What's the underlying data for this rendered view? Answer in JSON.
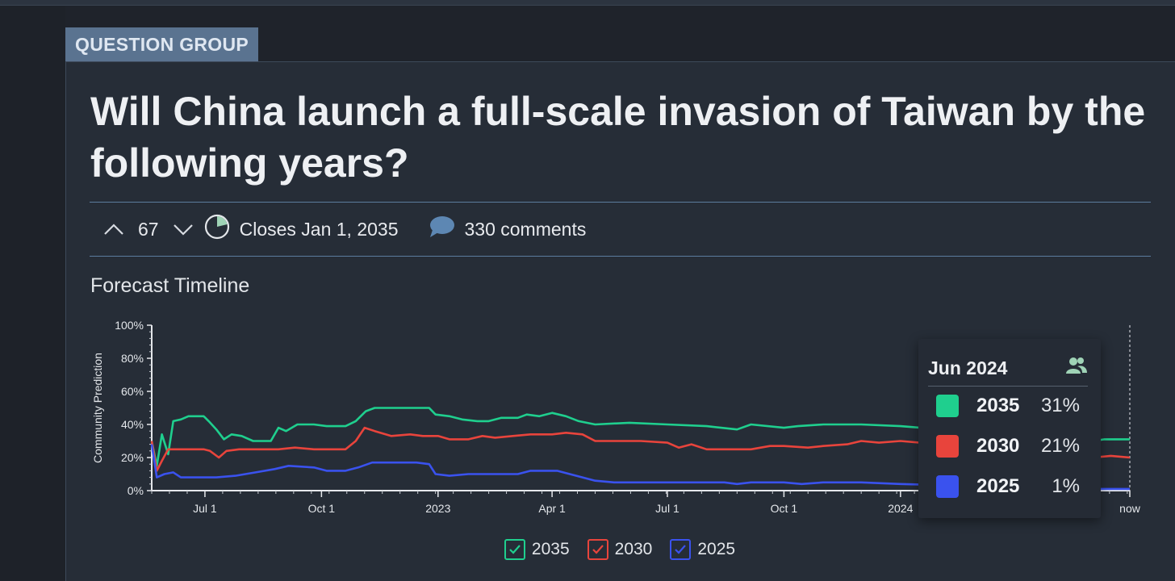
{
  "tag": "QUESTION GROUP",
  "title": "Will China launch a full-scale invasion of Taiwan by the following years?",
  "meta": {
    "votes": "67",
    "closes": "Closes Jan 1, 2035",
    "comments": "330 comments"
  },
  "section_title": "Forecast Timeline",
  "colors": {
    "2035": "#1fcf8e",
    "2030": "#e8443c",
    "2025": "#3a52ee",
    "accent": "#5a7390"
  },
  "chart_data": {
    "type": "line",
    "ylabel": "Community Prediction",
    "y_ticks": [
      "0%",
      "20%",
      "40%",
      "60%",
      "80%",
      "100%"
    ],
    "ylim": [
      0,
      100
    ],
    "x_ticks": [
      {
        "label": "Jul 1",
        "x": "2022-07-01"
      },
      {
        "label": "Oct 1",
        "x": "2022-10-01"
      },
      {
        "label": "2023",
        "x": "2023-01-01"
      },
      {
        "label": "Apr 1",
        "x": "2023-04-01"
      },
      {
        "label": "Jul 1",
        "x": "2023-07-01"
      },
      {
        "label": "Oct 1",
        "x": "2023-10-01"
      },
      {
        "label": "2024",
        "x": "2024-01-01"
      },
      {
        "label": "now",
        "x": "2024-06-30"
      }
    ],
    "x_range": [
      "2022-05-20",
      "2024-06-30"
    ],
    "grid": false,
    "series": [
      {
        "name": "2035",
        "points": [
          [
            "2022-05-20",
            30
          ],
          [
            "2022-05-24",
            15
          ],
          [
            "2022-05-28",
            34
          ],
          [
            "2022-06-02",
            22
          ],
          [
            "2022-06-06",
            42
          ],
          [
            "2022-06-12",
            43
          ],
          [
            "2022-06-18",
            45
          ],
          [
            "2022-06-30",
            45
          ],
          [
            "2022-07-04",
            42
          ],
          [
            "2022-07-10",
            37
          ],
          [
            "2022-07-16",
            31
          ],
          [
            "2022-07-22",
            34
          ],
          [
            "2022-07-30",
            33
          ],
          [
            "2022-08-08",
            30
          ],
          [
            "2022-08-22",
            30
          ],
          [
            "2022-08-28",
            38
          ],
          [
            "2022-09-03",
            36
          ],
          [
            "2022-09-12",
            40
          ],
          [
            "2022-09-25",
            40
          ],
          [
            "2022-10-05",
            39
          ],
          [
            "2022-10-20",
            39
          ],
          [
            "2022-10-28",
            42
          ],
          [
            "2022-11-05",
            48
          ],
          [
            "2022-11-12",
            50
          ],
          [
            "2022-12-25",
            50
          ],
          [
            "2022-12-30",
            46
          ],
          [
            "2023-01-10",
            45
          ],
          [
            "2023-01-20",
            43
          ],
          [
            "2023-02-01",
            42
          ],
          [
            "2023-02-10",
            42
          ],
          [
            "2023-02-20",
            44
          ],
          [
            "2023-03-05",
            44
          ],
          [
            "2023-03-12",
            46
          ],
          [
            "2023-03-22",
            45
          ],
          [
            "2023-04-01",
            47
          ],
          [
            "2023-04-12",
            45
          ],
          [
            "2023-04-22",
            42
          ],
          [
            "2023-05-05",
            40
          ],
          [
            "2023-06-01",
            41
          ],
          [
            "2023-07-01",
            40
          ],
          [
            "2023-08-01",
            39
          ],
          [
            "2023-08-25",
            37
          ],
          [
            "2023-09-05",
            40
          ],
          [
            "2023-10-01",
            38
          ],
          [
            "2023-10-12",
            39
          ],
          [
            "2023-11-01",
            40
          ],
          [
            "2023-12-01",
            40
          ],
          [
            "2024-01-01",
            39
          ],
          [
            "2024-06-01",
            30
          ],
          [
            "2024-06-10",
            31
          ],
          [
            "2024-06-30",
            31
          ]
        ]
      },
      {
        "name": "2030",
        "points": [
          [
            "2022-05-20",
            30
          ],
          [
            "2022-05-24",
            12
          ],
          [
            "2022-05-28",
            18
          ],
          [
            "2022-06-02",
            25
          ],
          [
            "2022-06-30",
            25
          ],
          [
            "2022-07-05",
            24
          ],
          [
            "2022-07-12",
            20
          ],
          [
            "2022-07-18",
            24
          ],
          [
            "2022-07-28",
            25
          ],
          [
            "2022-08-10",
            25
          ],
          [
            "2022-08-28",
            25
          ],
          [
            "2022-09-10",
            26
          ],
          [
            "2022-09-25",
            25
          ],
          [
            "2022-10-20",
            25
          ],
          [
            "2022-10-28",
            30
          ],
          [
            "2022-11-04",
            38
          ],
          [
            "2022-11-12",
            36
          ],
          [
            "2022-11-25",
            33
          ],
          [
            "2022-12-10",
            34
          ],
          [
            "2022-12-20",
            33
          ],
          [
            "2023-01-01",
            33
          ],
          [
            "2023-01-10",
            31
          ],
          [
            "2023-01-25",
            31
          ],
          [
            "2023-02-05",
            33
          ],
          [
            "2023-02-15",
            32
          ],
          [
            "2023-03-01",
            33
          ],
          [
            "2023-03-15",
            34
          ],
          [
            "2023-04-01",
            34
          ],
          [
            "2023-04-12",
            35
          ],
          [
            "2023-04-25",
            34
          ],
          [
            "2023-05-05",
            30
          ],
          [
            "2023-05-25",
            30
          ],
          [
            "2023-06-10",
            30
          ],
          [
            "2023-07-01",
            29
          ],
          [
            "2023-07-10",
            26
          ],
          [
            "2023-07-20",
            28
          ],
          [
            "2023-08-01",
            25
          ],
          [
            "2023-08-20",
            25
          ],
          [
            "2023-09-05",
            25
          ],
          [
            "2023-09-20",
            27
          ],
          [
            "2023-10-01",
            27
          ],
          [
            "2023-10-20",
            26
          ],
          [
            "2023-11-01",
            27
          ],
          [
            "2023-11-20",
            28
          ],
          [
            "2023-12-01",
            30
          ],
          [
            "2023-12-15",
            29
          ],
          [
            "2024-01-01",
            30
          ],
          [
            "2024-06-01",
            20
          ],
          [
            "2024-06-15",
            21
          ],
          [
            "2024-06-30",
            20
          ]
        ]
      },
      {
        "name": "2025",
        "points": [
          [
            "2022-05-20",
            28
          ],
          [
            "2022-05-24",
            8
          ],
          [
            "2022-05-30",
            10
          ],
          [
            "2022-06-06",
            11
          ],
          [
            "2022-06-12",
            8
          ],
          [
            "2022-06-30",
            8
          ],
          [
            "2022-07-10",
            8
          ],
          [
            "2022-07-25",
            9
          ],
          [
            "2022-08-10",
            11
          ],
          [
            "2022-08-25",
            13
          ],
          [
            "2022-09-05",
            15
          ],
          [
            "2022-09-25",
            14
          ],
          [
            "2022-10-05",
            12
          ],
          [
            "2022-10-20",
            12
          ],
          [
            "2022-10-30",
            14
          ],
          [
            "2022-11-10",
            17
          ],
          [
            "2022-12-15",
            17
          ],
          [
            "2022-12-25",
            16
          ],
          [
            "2022-12-30",
            10
          ],
          [
            "2023-01-10",
            9
          ],
          [
            "2023-01-25",
            10
          ],
          [
            "2023-02-15",
            10
          ],
          [
            "2023-03-05",
            10
          ],
          [
            "2023-03-15",
            12
          ],
          [
            "2023-04-05",
            12
          ],
          [
            "2023-04-15",
            10
          ],
          [
            "2023-04-25",
            8
          ],
          [
            "2023-05-05",
            6
          ],
          [
            "2023-05-20",
            5
          ],
          [
            "2023-07-01",
            5
          ],
          [
            "2023-08-15",
            5
          ],
          [
            "2023-08-25",
            4
          ],
          [
            "2023-09-05",
            5
          ],
          [
            "2023-10-01",
            5
          ],
          [
            "2023-10-15",
            4
          ],
          [
            "2023-11-01",
            5
          ],
          [
            "2023-12-01",
            5
          ],
          [
            "2024-01-01",
            4
          ],
          [
            "2024-06-01",
            1
          ],
          [
            "2024-06-30",
            1
          ]
        ]
      }
    ]
  },
  "tooltip": {
    "date": "Jun 2024",
    "icon": "users-icon",
    "rows": [
      {
        "year": "2035",
        "value": "31%"
      },
      {
        "year": "2030",
        "value": "21%"
      },
      {
        "year": "2025",
        "value": "1%"
      }
    ]
  },
  "legend": [
    {
      "label": "2035"
    },
    {
      "label": "2030"
    },
    {
      "label": "2025"
    }
  ]
}
